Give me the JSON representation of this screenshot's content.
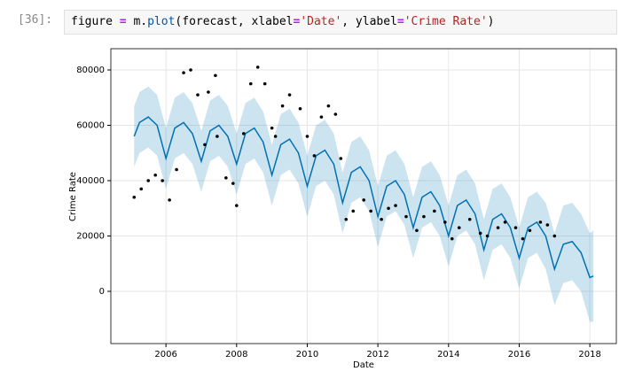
{
  "cell": {
    "prompt": "[36]:",
    "code": [
      "figure ",
      "=",
      " m.",
      "plot",
      "(forecast, xlabel",
      "=",
      "'Date'",
      ", ylabel",
      "=",
      "'Crime Rate'",
      ")"
    ]
  },
  "chart_data": {
    "type": "forecast",
    "xlabel": "Date",
    "ylabel": "Crime Rate",
    "xlim": [
      2004.44,
      2018.75
    ],
    "xticks": [
      2006,
      2008,
      2010,
      2012,
      2014,
      2016,
      2018
    ],
    "ylim": [
      -18880,
      87680
    ],
    "yticks": [
      0,
      20000,
      40000,
      60000,
      80000
    ],
    "grid": true,
    "series": [
      {
        "type": "line",
        "color": "#0072B2",
        "band_color": "#0072B2",
        "x": [
          2005.1,
          2005.25,
          2005.5,
          2005.75,
          2006,
          2006.25,
          2006.5,
          2006.75,
          2007,
          2007.25,
          2007.5,
          2007.75,
          2008,
          2008.25,
          2008.5,
          2008.75,
          2009,
          2009.25,
          2009.5,
          2009.75,
          2010,
          2010.25,
          2010.5,
          2010.75,
          2011,
          2011.25,
          2011.5,
          2011.75,
          2012,
          2012.25,
          2012.5,
          2012.75,
          2013,
          2013.25,
          2013.5,
          2013.75,
          2014,
          2014.25,
          2014.5,
          2014.75,
          2015,
          2015.25,
          2015.5,
          2015.75,
          2016,
          2016.25,
          2016.5,
          2016.75,
          2017,
          2017.25,
          2017.5,
          2017.75,
          2018,
          2018.1
        ],
        "values": [
          56000,
          61000,
          63000,
          60000,
          48000,
          59000,
          61000,
          57000,
          47000,
          58000,
          60000,
          56000,
          46000,
          57000,
          59000,
          54000,
          42000,
          53000,
          55000,
          50000,
          38000,
          49000,
          51000,
          46000,
          32000,
          43000,
          45000,
          40000,
          27000,
          38000,
          40000,
          35000,
          23000,
          34000,
          36000,
          31000,
          20000,
          31000,
          33000,
          28000,
          15000,
          26000,
          28000,
          23000,
          12000,
          23000,
          25000,
          20000,
          8000,
          17000,
          18000,
          14000,
          5000,
          5500
        ],
        "upper": [
          67000,
          72000,
          74000,
          71000,
          59000,
          70000,
          72000,
          68000,
          58000,
          69000,
          71000,
          67000,
          57000,
          68000,
          70000,
          65000,
          53000,
          64000,
          66000,
          61000,
          49000,
          60000,
          62000,
          57000,
          43000,
          54000,
          56000,
          51000,
          38000,
          49000,
          51000,
          46000,
          34000,
          45000,
          47000,
          42000,
          31000,
          42000,
          44000,
          39000,
          26000,
          37000,
          39000,
          34000,
          23000,
          34000,
          36000,
          32000,
          21000,
          31000,
          32000,
          28000,
          21000,
          22000
        ],
        "lower": [
          45000,
          50000,
          52000,
          49000,
          37000,
          48000,
          50000,
          46000,
          36000,
          47000,
          49000,
          45000,
          35000,
          46000,
          48000,
          43000,
          31000,
          42000,
          44000,
          39000,
          27000,
          38000,
          40000,
          35000,
          21000,
          32000,
          34000,
          29000,
          16000,
          27000,
          29000,
          24000,
          12000,
          23000,
          25000,
          20000,
          9000,
          20000,
          22000,
          17000,
          4000,
          15000,
          17000,
          12000,
          1000,
          12000,
          14000,
          8000,
          -5000,
          3000,
          4000,
          0,
          -11000,
          -11000
        ]
      },
      {
        "type": "scatter",
        "color": "#000000",
        "x": [
          2005.1,
          2005.3,
          2005.5,
          2005.7,
          2005.9,
          2006.1,
          2006.3,
          2006.5,
          2006.7,
          2006.9,
          2007.1,
          2007.2,
          2007.4,
          2007.45,
          2007.7,
          2007.9,
          2008,
          2008.2,
          2008.4,
          2008.6,
          2008.8,
          2009,
          2009.1,
          2009.3,
          2009.5,
          2009.8,
          2010,
          2010.2,
          2010.4,
          2010.6,
          2010.8,
          2010.95,
          2011.1,
          2011.3,
          2011.6,
          2011.8,
          2012.1,
          2012.3,
          2012.5,
          2012.8,
          2013.1,
          2013.3,
          2013.6,
          2013.9,
          2014.1,
          2014.3,
          2014.6,
          2014.9,
          2015.1,
          2015.4,
          2015.6,
          2015.9,
          2016.1,
          2016.3,
          2016.6,
          2016.8,
          2017
        ],
        "values": [
          34000,
          37000,
          40000,
          42000,
          40000,
          33000,
          44000,
          79000,
          80000,
          71000,
          53000,
          72000,
          78000,
          56000,
          41000,
          39000,
          31000,
          57000,
          75000,
          81000,
          75000,
          59000,
          56000,
          67000,
          71000,
          66000,
          56000,
          49000,
          63000,
          67000,
          64000,
          48000,
          26000,
          29000,
          33000,
          29000,
          26000,
          30000,
          31000,
          27000,
          22000,
          27000,
          29000,
          25000,
          19000,
          23000,
          26000,
          21000,
          20000,
          23000,
          25000,
          23000,
          19000,
          22000,
          25000,
          24000,
          20000
        ]
      }
    ]
  }
}
